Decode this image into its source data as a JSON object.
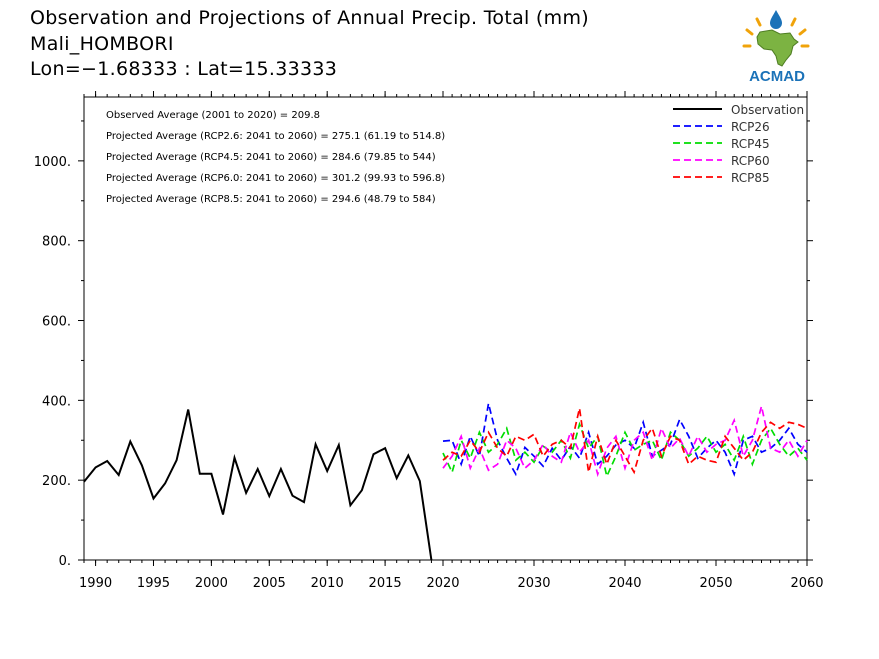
{
  "header": {
    "title": "Observation and Projections of Annual Precip. Total (mm)",
    "station": "Mali_HOMBORI",
    "coords": "Lon=−1.68333 : Lat=15.33333"
  },
  "logo": {
    "text": "ACMAD",
    "icon": "africa-raindrop-icon",
    "color": "#1b72b8"
  },
  "annotations": [
    "Observed Average (2001 to 2020) = 209.8",
    "Projected Average (RCP2.6: 2041 to 2060) = 275.1 (61.19 to 514.8)",
    "Projected Average (RCP4.5: 2041 to 2060) = 284.6 (79.85 to 544)",
    "Projected Average (RCP6.0: 2041 to 2060) = 301.2 (99.93 to 596.8)",
    "Projected Average (RCP8.5: 2041 to 2060) = 294.6 (48.79 to 584)"
  ],
  "chart_data": {
    "type": "line",
    "xlim": [
      1989,
      2060
    ],
    "ylim": [
      0,
      1160
    ],
    "y_ticks": [
      0,
      200,
      400,
      600,
      800,
      1000
    ],
    "y_tick_labels": [
      "0.",
      "200.",
      "400.",
      "600.",
      "800.",
      "1000."
    ],
    "x_ticks": [
      1990,
      1995,
      2000,
      2005,
      2010,
      2015,
      2020,
      2030,
      2040,
      2050,
      2060
    ],
    "x_tick_labels": [
      "1990",
      "1995",
      "2000",
      "2005",
      "2010",
      "2015",
      "2020",
      "2030",
      "2040",
      "2050",
      "2060"
    ],
    "legend_position": "top-right",
    "series": [
      {
        "name": "Observation",
        "color": "#000000",
        "dashed": false,
        "x": [
          1989,
          1990,
          1991,
          1992,
          1993,
          1994,
          1995,
          1996,
          1997,
          1998,
          1999,
          2000,
          2001,
          2002,
          2003,
          2004,
          2005,
          2006,
          2007,
          2008,
          2009,
          2010,
          2011,
          2012,
          2013,
          2014,
          2015,
          2016,
          2017,
          2018,
          2019
        ],
        "values": [
          196,
          232,
          248,
          213,
          297,
          237,
          154,
          192,
          250,
          377,
          216,
          216,
          114,
          256,
          168,
          228,
          160,
          228,
          161,
          145,
          290,
          223,
          288,
          137,
          175,
          265,
          280,
          205,
          262,
          198,
          0
        ]
      },
      {
        "name": "RCP26",
        "color": "#0000ff",
        "dashed": true,
        "x": [
          2020,
          2021,
          2022,
          2023,
          2024,
          2025,
          2026,
          2027,
          2028,
          2029,
          2030,
          2031,
          2032,
          2033,
          2034,
          2035,
          2036,
          2037,
          2038,
          2039,
          2040,
          2041,
          2042,
          2043,
          2044,
          2045,
          2046,
          2047,
          2048,
          2049,
          2050,
          2051,
          2052,
          2053,
          2054,
          2055,
          2056,
          2057,
          2058,
          2059,
          2060
        ],
        "values": [
          298,
          300,
          240,
          310,
          260,
          392,
          300,
          255,
          215,
          282,
          260,
          235,
          280,
          250,
          285,
          255,
          320,
          240,
          260,
          288,
          300,
          280,
          345,
          260,
          275,
          290,
          352,
          310,
          255,
          280,
          300,
          270,
          215,
          300,
          310,
          270,
          280,
          300,
          330,
          290,
          270
        ]
      },
      {
        "name": "RCP45",
        "color": "#00dd00",
        "dashed": true,
        "x": [
          2020,
          2021,
          2022,
          2023,
          2024,
          2025,
          2026,
          2027,
          2028,
          2029,
          2030,
          2031,
          2032,
          2033,
          2034,
          2035,
          2036,
          2037,
          2038,
          2039,
          2040,
          2041,
          2042,
          2043,
          2044,
          2045,
          2046,
          2047,
          2048,
          2049,
          2050,
          2051,
          2052,
          2053,
          2054,
          2055,
          2056,
          2057,
          2058,
          2059,
          2060
        ],
        "values": [
          268,
          220,
          300,
          255,
          320,
          270,
          290,
          330,
          250,
          270,
          245,
          285,
          270,
          300,
          255,
          340,
          280,
          310,
          210,
          260,
          320,
          275,
          290,
          300,
          250,
          320,
          300,
          260,
          280,
          310,
          270,
          290,
          250,
          310,
          240,
          300,
          330,
          290,
          260,
          280,
          250
        ]
      },
      {
        "name": "RCP60",
        "color": "#ff00ff",
        "dashed": true,
        "x": [
          2020,
          2021,
          2022,
          2023,
          2024,
          2025,
          2026,
          2027,
          2028,
          2029,
          2030,
          2031,
          2032,
          2033,
          2034,
          2035,
          2036,
          2037,
          2038,
          2039,
          2040,
          2041,
          2042,
          2043,
          2044,
          2045,
          2046,
          2047,
          2048,
          2049,
          2050,
          2051,
          2052,
          2053,
          2054,
          2055,
          2056,
          2057,
          2058,
          2059,
          2060
        ],
        "values": [
          230,
          260,
          310,
          230,
          280,
          225,
          240,
          300,
          280,
          230,
          250,
          290,
          260,
          245,
          320,
          270,
          300,
          215,
          280,
          310,
          230,
          300,
          320,
          250,
          330,
          280,
          305,
          260,
          310,
          270,
          290,
          300,
          350,
          260,
          300,
          385,
          280,
          270,
          300,
          260,
          300
        ]
      },
      {
        "name": "RCP85",
        "color": "#ff0000",
        "dashed": true,
        "x": [
          2020,
          2021,
          2022,
          2023,
          2024,
          2025,
          2026,
          2027,
          2028,
          2029,
          2030,
          2031,
          2032,
          2033,
          2034,
          2035,
          2036,
          2037,
          2038,
          2039,
          2040,
          2041,
          2042,
          2043,
          2044,
          2045,
          2046,
          2047,
          2048,
          2049,
          2050,
          2051,
          2052,
          2053,
          2054,
          2055,
          2056,
          2057,
          2058,
          2059,
          2060
        ],
        "values": [
          250,
          270,
          260,
          300,
          270,
          320,
          280,
          260,
          310,
          300,
          315,
          260,
          290,
          300,
          280,
          380,
          220,
          310,
          240,
          300,
          260,
          220,
          300,
          330,
          260,
          310,
          300,
          240,
          260,
          250,
          245,
          310,
          280,
          250,
          270,
          320,
          345,
          330,
          345,
          340,
          330
        ]
      }
    ]
  }
}
